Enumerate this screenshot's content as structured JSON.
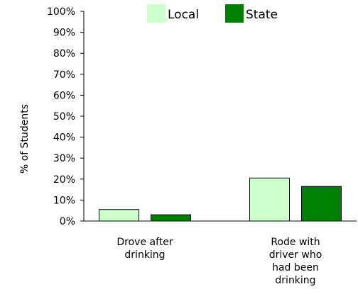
{
  "chart_data": {
    "type": "bar",
    "ylabel": "% of Students",
    "ylim": [
      0,
      100
    ],
    "yticks": [
      "0%",
      "10%",
      "20%",
      "30%",
      "40%",
      "50%",
      "60%",
      "70%",
      "80%",
      "90%",
      "100%"
    ],
    "categories": [
      {
        "id": "drove",
        "lines": [
          "Drove after",
          "drinking"
        ]
      },
      {
        "id": "rode",
        "lines": [
          "Rode with",
          "driver who",
          "had been",
          "drinking"
        ]
      }
    ],
    "series": [
      {
        "name": "Local",
        "color": "#ccffcc",
        "values": [
          5.5,
          20.5
        ]
      },
      {
        "name": "State",
        "color": "#008000",
        "values": [
          3,
          16.5
        ]
      }
    ],
    "legend_position": "top",
    "grid": false
  }
}
